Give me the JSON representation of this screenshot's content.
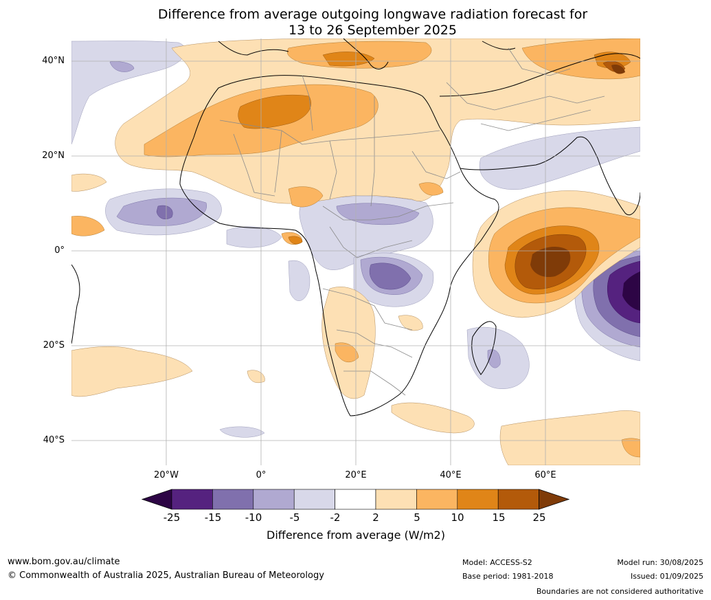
{
  "title": {
    "line1": "Difference from average outgoing longwave radiation forecast for",
    "line2": "13 to 26 September 2025"
  },
  "map": {
    "lat_labels": [
      "40°N",
      "20°N",
      "0°",
      "20°S",
      "40°S"
    ],
    "lon_labels": [
      "20°W",
      "0°",
      "20°E",
      "40°E",
      "60°E"
    ],
    "extent": {
      "lon": [
        -40,
        80
      ],
      "lat": [
        -45,
        45
      ]
    },
    "gridlines": true
  },
  "colorbar": {
    "ticks": [
      "-25",
      "-15",
      "-10",
      "-5",
      "-2",
      "2",
      "5",
      "10",
      "15",
      "25"
    ],
    "colors": [
      "#2d0545",
      "#55227f",
      "#8070ad",
      "#b0a9d1",
      "#d8d8e9",
      "#ffffff",
      "#fde0b4",
      "#fbb561",
      "#e08518",
      "#b35a0a",
      "#7f3b08"
    ],
    "title": "Difference from average (W/m2)"
  },
  "footer": {
    "website": "www.bom.gov.au/climate",
    "copyright": "© Commonwealth of Australia 2025, Australian Bureau of Meteorology",
    "model": "Model: ACCESS-S2",
    "base_period": "Base period: 1981-2018",
    "model_run": "Model run: 30/08/2025",
    "issued": "Issued: 01/09/2025",
    "disclaimer": "Boundaries are not considered authoritative"
  }
}
